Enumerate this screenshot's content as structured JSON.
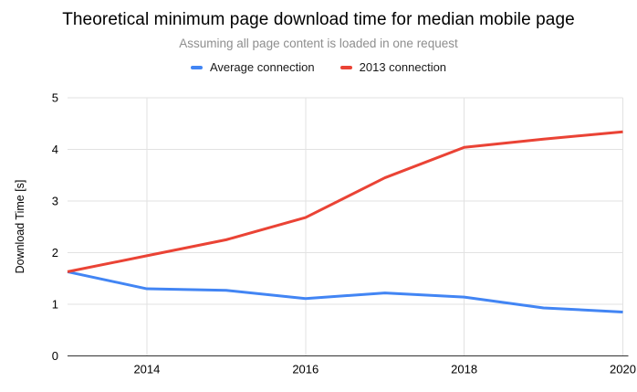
{
  "header": {
    "title": "Theoretical minimum page download time for median mobile page",
    "subtitle": "Assuming all page content is loaded in one request"
  },
  "colors": {
    "average_connection": "#4285f4",
    "connection_2013": "#ea4335",
    "gridline": "#e2e2e2",
    "axis_line": "#333333",
    "tick_label": "#000000"
  },
  "chart_data": {
    "type": "line",
    "title": "Theoretical minimum page download time for median mobile page",
    "subtitle": "Assuming all page content is loaded in one request",
    "xlabel": "",
    "ylabel": "Download Time [s]",
    "x": [
      2013,
      2014,
      2015,
      2016,
      2017,
      2018,
      2019,
      2020
    ],
    "series": [
      {
        "name": "Average connection",
        "color": "#4285f4",
        "values": [
          1.63,
          1.3,
          1.27,
          1.11,
          1.22,
          1.14,
          0.93,
          0.85
        ]
      },
      {
        "name": "2013 connection",
        "color": "#ea4335",
        "values": [
          1.63,
          1.94,
          2.25,
          2.68,
          3.45,
          4.04,
          4.2,
          4.34
        ]
      }
    ],
    "ylim": [
      0,
      5
    ],
    "yticks": [
      0,
      1,
      2,
      3,
      4,
      5
    ],
    "xticks": [
      2014,
      2016,
      2018,
      2020
    ],
    "grid": true,
    "legend_position": "top"
  }
}
